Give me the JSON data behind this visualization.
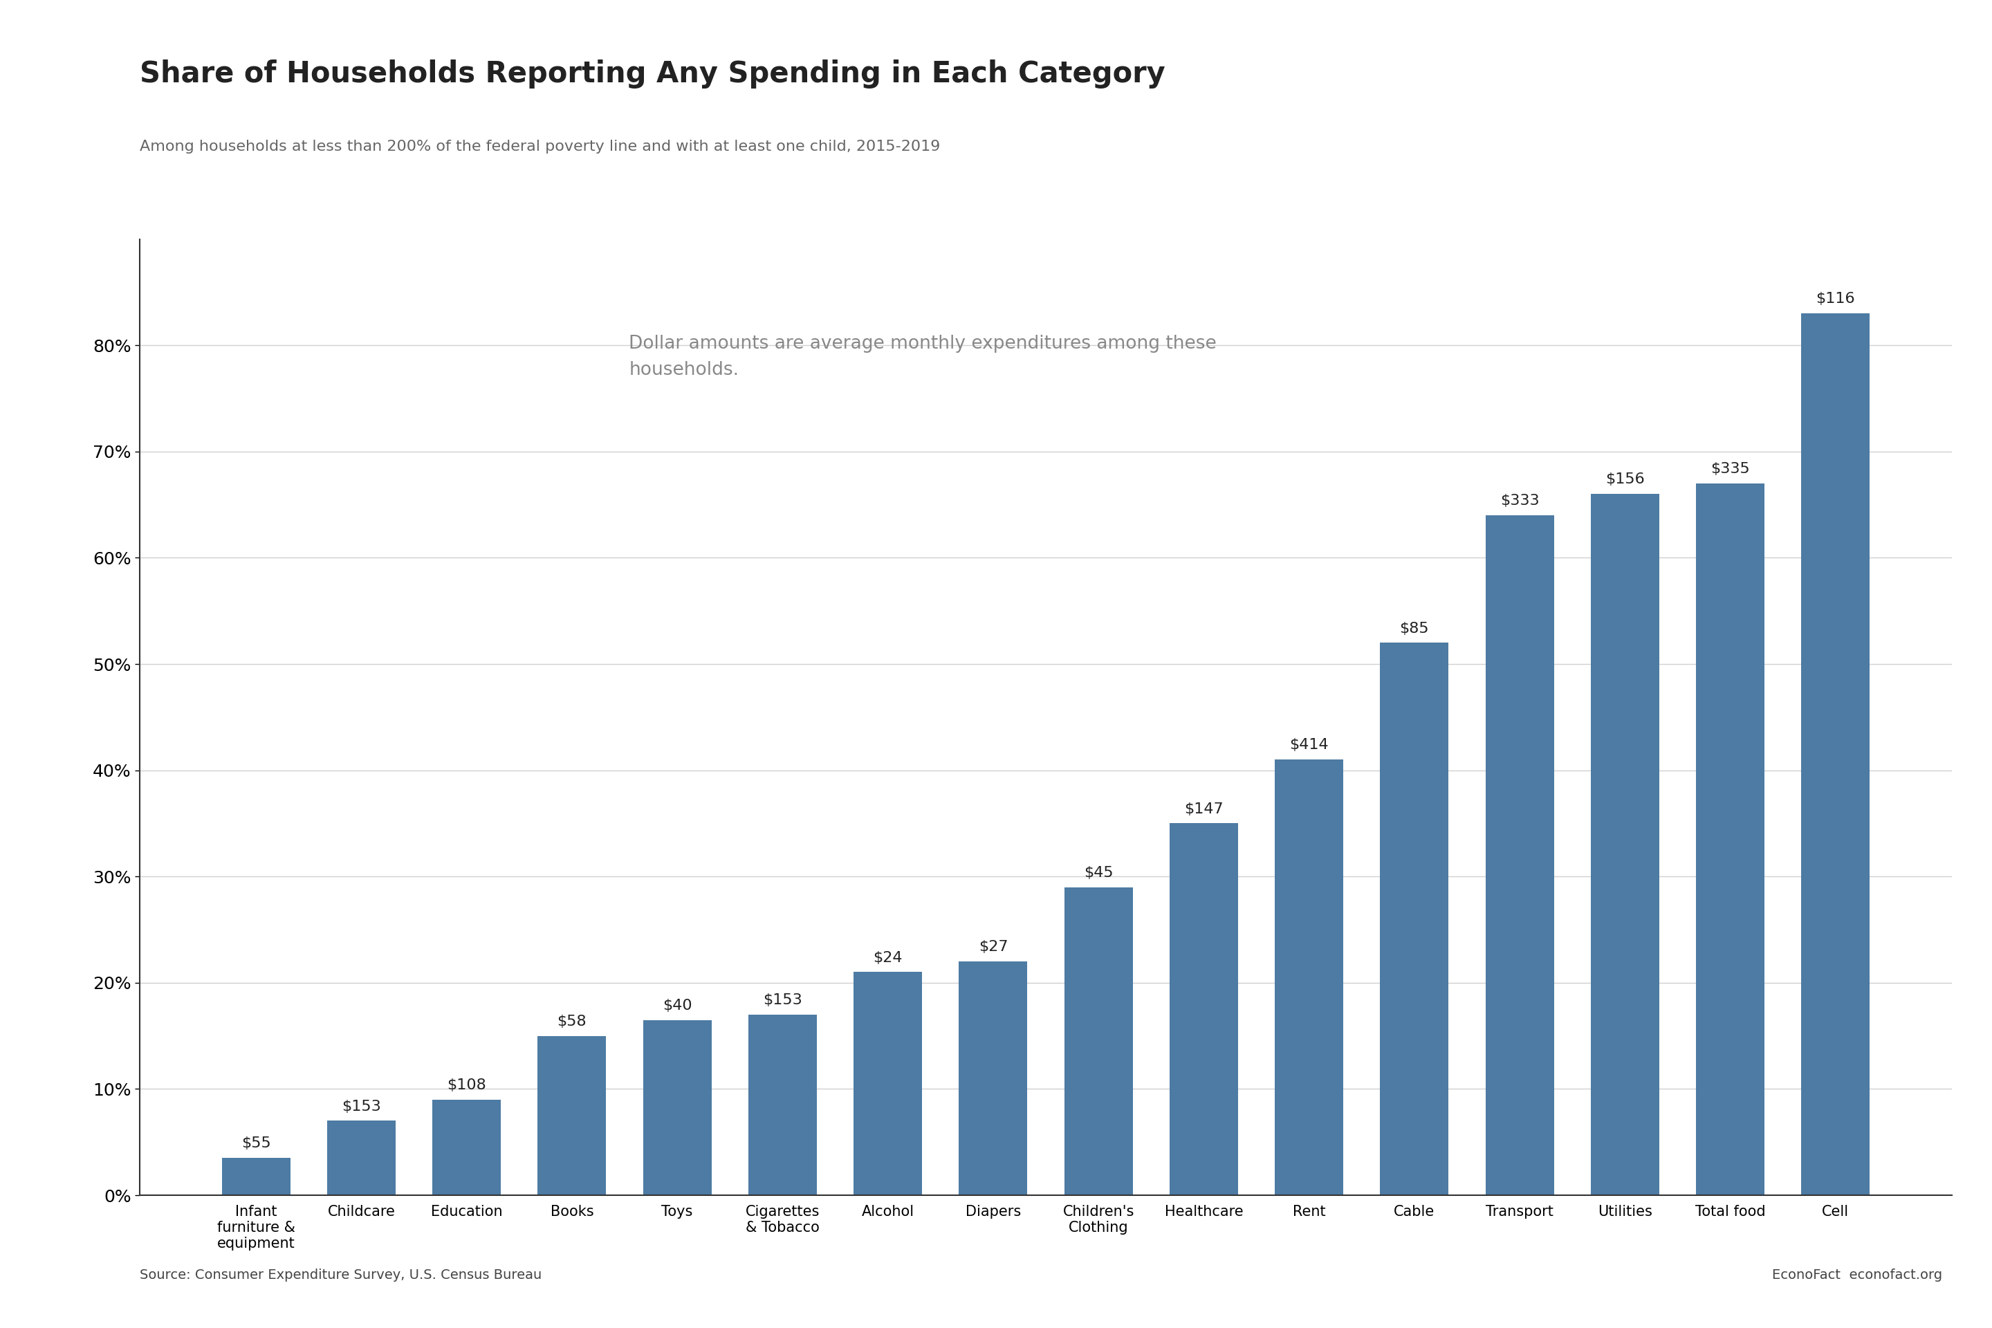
{
  "title": "Share of Households Reporting Any Spending in Each Category",
  "subtitle": "Among households at less than 200% of the federal poverty line and with at least one child, 2015-2019",
  "source": "Source: Consumer Expenditure Survey, U.S. Census Bureau",
  "branding": "EconoFact  econofact.org",
  "annotation_line1": "Dollar amounts are average monthly expenditures among these",
  "annotation_line2": "households.",
  "categories": [
    "Infant\nfurniture &\nequipment",
    "Childcare",
    "Education",
    "Books",
    "Toys",
    "Cigarettes\n& Tobacco",
    "Alcohol",
    "Diapers",
    "Children's\nClothing",
    "Healthcare",
    "Rent",
    "Cable",
    "Transport",
    "Utilities",
    "Total food",
    "Cell"
  ],
  "values": [
    3.5,
    7.0,
    9.0,
    15.0,
    16.5,
    17.0,
    21.0,
    22.0,
    29.0,
    35.0,
    41.0,
    52.0,
    64.0,
    66.0,
    67.0,
    83.0
  ],
  "dollar_labels": [
    "$55",
    "$153",
    "$108",
    "$58",
    "$40",
    "$153",
    "$24",
    "$27",
    "$45",
    "$147",
    "$414",
    "$85",
    "$333",
    "$156",
    "$335",
    "$116"
  ],
  "bar_color": "#4d7ba3",
  "ylim": [
    0,
    90
  ],
  "yticks": [
    0,
    10,
    20,
    30,
    40,
    50,
    60,
    70,
    80
  ],
  "ytick_labels": [
    "0%",
    "10%",
    "20%",
    "30%",
    "40%",
    "50%",
    "60%",
    "70%",
    "80%"
  ],
  "title_fontsize": 30,
  "subtitle_fontsize": 16,
  "source_fontsize": 14,
  "annotation_fontsize": 19,
  "tick_fontsize": 18,
  "label_fontsize": 15,
  "dollar_fontsize": 16,
  "background_color": "#ffffff",
  "grid_color": "#d0d0d0",
  "annotation_color": "#888888",
  "text_color": "#222222",
  "subtitle_color": "#666666",
  "source_color": "#444444"
}
